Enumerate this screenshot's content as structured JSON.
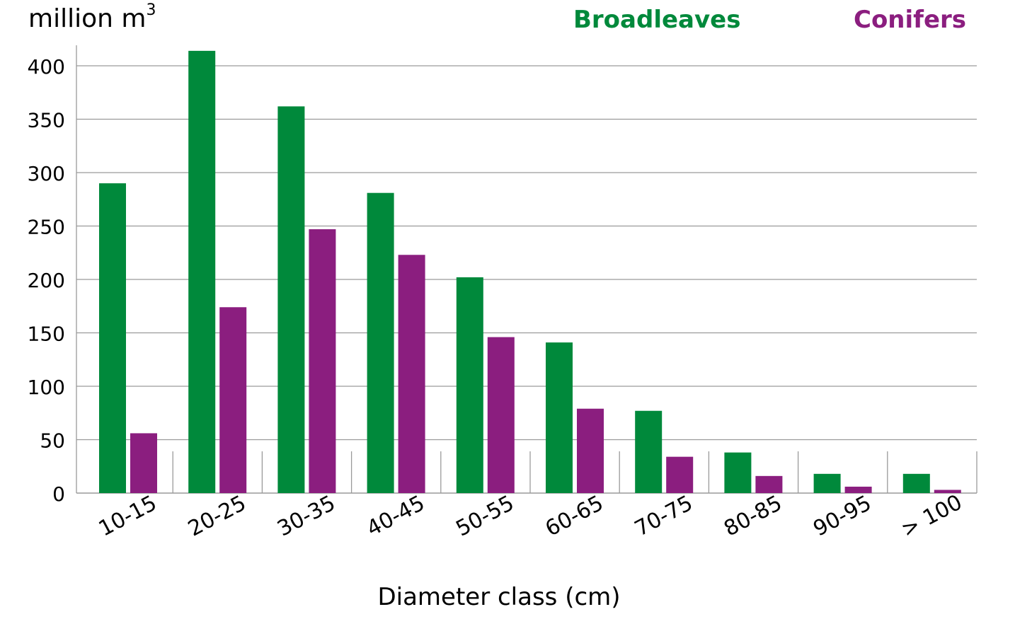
{
  "chart_data": {
    "type": "bar",
    "ylabel": "million m",
    "ylabel_superscript": "3",
    "xlabel": "Diameter class (cm)",
    "categories": [
      "10-15",
      "20-25",
      "30-35",
      "40-45",
      "50-55",
      "60-65",
      "70-75",
      "80-85",
      "90-95",
      "> 100"
    ],
    "series": [
      {
        "name": "Broadleaves",
        "color": "#00893b",
        "values": [
          290,
          414,
          362,
          281,
          202,
          141,
          77,
          38,
          18,
          18
        ]
      },
      {
        "name": "Conifers",
        "color": "#8b1e7f",
        "values": [
          56,
          174,
          247,
          223,
          146,
          79,
          34,
          16,
          6,
          3
        ]
      }
    ],
    "ylim": [
      0,
      420
    ],
    "yticks": [
      0,
      50,
      100,
      150,
      200,
      250,
      300,
      350,
      400
    ],
    "grid": true,
    "legend_position": "top-right"
  }
}
